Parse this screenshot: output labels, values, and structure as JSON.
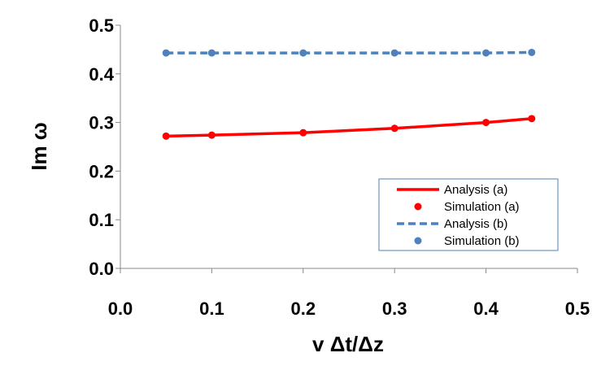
{
  "chart_data": {
    "type": "line",
    "title": "",
    "xlabel": "v Δt/Δz",
    "ylabel": "Im ω",
    "xlim": [
      0.0,
      0.5
    ],
    "ylim": [
      0.0,
      0.5
    ],
    "x_ticks": [
      "0.0",
      "0.1",
      "0.2",
      "0.3",
      "0.4",
      "0.5"
    ],
    "y_ticks": [
      "0.0",
      "0.1",
      "0.2",
      "0.3",
      "0.4",
      "0.5"
    ],
    "grid": false,
    "legend_position": "lower-right",
    "series": [
      {
        "name": "Analysis (a)",
        "kind": "line",
        "style": "solid",
        "color": "#ff0000",
        "x": [
          0.05,
          0.1,
          0.2,
          0.3,
          0.4,
          0.45
        ],
        "y": [
          0.272,
          0.274,
          0.279,
          0.288,
          0.3,
          0.308
        ]
      },
      {
        "name": "Simulation (a)",
        "kind": "markers",
        "color": "#ff0000",
        "x": [
          0.05,
          0.1,
          0.2,
          0.3,
          0.4,
          0.45
        ],
        "y": [
          0.272,
          0.274,
          0.279,
          0.288,
          0.3,
          0.308
        ]
      },
      {
        "name": "Analysis (b)",
        "kind": "line",
        "style": "dashed",
        "color": "#4f81bd",
        "x": [
          0.05,
          0.1,
          0.2,
          0.3,
          0.4,
          0.45
        ],
        "y": [
          0.443,
          0.443,
          0.443,
          0.443,
          0.443,
          0.444
        ]
      },
      {
        "name": "Simulation (b)",
        "kind": "markers",
        "color": "#4f81bd",
        "x": [
          0.05,
          0.1,
          0.2,
          0.3,
          0.4,
          0.45
        ],
        "y": [
          0.443,
          0.443,
          0.443,
          0.443,
          0.443,
          0.444
        ]
      }
    ]
  }
}
